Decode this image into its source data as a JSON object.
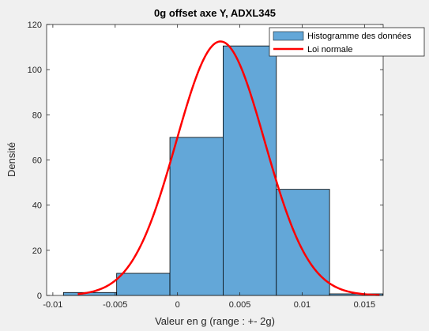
{
  "chart_data": {
    "type": "bar",
    "title": "0g offset axe Y, ADXL345",
    "xlabel": "Valeur en g (range : +- 2g)",
    "ylabel": "Densité",
    "xlim": [
      -0.0105,
      0.0165
    ],
    "ylim": [
      0,
      120
    ],
    "xticks": [
      -0.01,
      -0.005,
      0,
      0.005,
      0.01,
      0.015
    ],
    "xtick_labels": [
      "-0.01",
      "-0.005",
      "0",
      "0.005",
      "0.01",
      "0.015"
    ],
    "yticks": [
      0,
      20,
      40,
      60,
      80,
      100,
      120
    ],
    "ytick_labels": [
      "0",
      "20",
      "40",
      "60",
      "80",
      "100",
      "120"
    ],
    "grid": false,
    "legend_position": "top-right",
    "histogram": {
      "name": "Histogramme des données",
      "color": "#63a7d8",
      "bin_edges": [
        -0.00915,
        -0.00488,
        -0.00061,
        0.00366,
        0.00793,
        0.0122,
        0.01647
      ],
      "values": [
        1.3,
        9.8,
        70.0,
        110.5,
        47.0,
        0.7
      ]
    },
    "normal_curve": {
      "name": "Loi normale",
      "color": "#ff0000",
      "mean": 0.00345,
      "peak": 112.5,
      "x_range": [
        -0.008,
        0.0162
      ]
    }
  }
}
